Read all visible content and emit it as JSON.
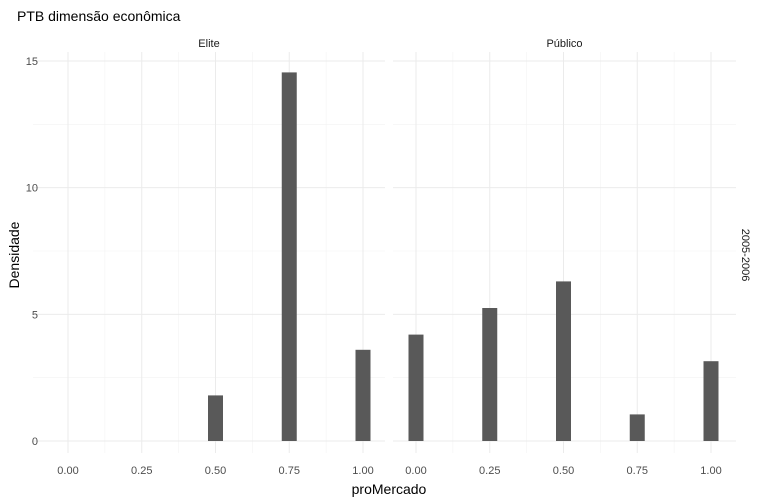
{
  "chart_data": {
    "type": "bar",
    "title": "PTB dimensão econômica",
    "xlabel": "proMercado",
    "ylabel": "Densidade",
    "row_strip": "2005-2006",
    "ylim": [
      0,
      15.5
    ],
    "y_ticks": [
      0,
      5,
      10,
      15
    ],
    "x_ticks": [
      "0.00",
      "0.25",
      "0.50",
      "0.75",
      "1.00"
    ],
    "grid": true,
    "facets": [
      {
        "name": "Elite",
        "x": [
          0.5,
          0.75,
          1.0
        ],
        "values": [
          1.8,
          14.55,
          3.6
        ]
      },
      {
        "name": "Público",
        "x": [
          0.0,
          0.25,
          0.5,
          0.75,
          1.0
        ],
        "values": [
          4.2,
          5.25,
          6.3,
          1.05,
          3.15
        ]
      }
    ]
  }
}
